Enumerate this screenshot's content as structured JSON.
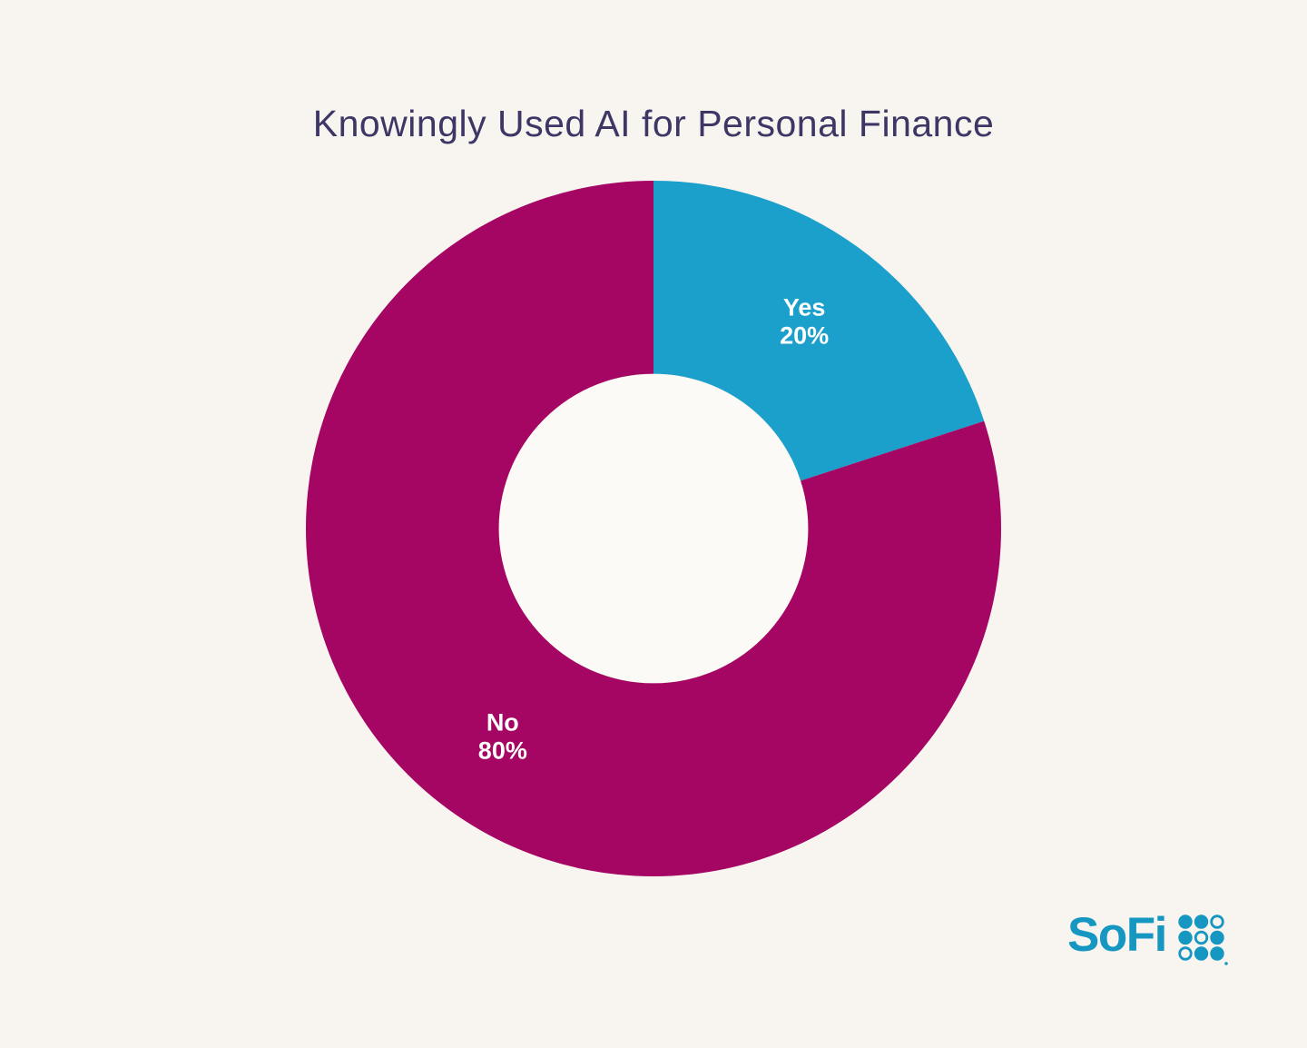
{
  "page": {
    "background": "#F8F5F0",
    "hole_color": "#FCFAF6"
  },
  "chart_data": {
    "type": "pie",
    "title": "Knowingly Used AI for Personal Finance",
    "title_color": "#3E3765",
    "categories": [
      "Yes",
      "No"
    ],
    "values": [
      20,
      80
    ],
    "unit": "%",
    "slices": [
      {
        "label": "Yes",
        "value": 20,
        "value_label": "20%",
        "color": "#1BA0CB"
      },
      {
        "label": "No",
        "value": 80,
        "value_label": "80%",
        "color": "#A50563"
      }
    ],
    "donut": true,
    "hole_ratio": 0.445,
    "start_angle_deg": 0,
    "direction": "clockwise",
    "slice_label_color": "#FFFFFF",
    "legend": "none",
    "grid": "off"
  },
  "branding": {
    "wordmark": "SoFi",
    "color": "#1697C1",
    "dot_grid": [
      [
        1,
        1,
        0
      ],
      [
        1,
        0,
        1
      ],
      [
        0,
        1,
        1
      ]
    ],
    "trademark_dot": true
  }
}
